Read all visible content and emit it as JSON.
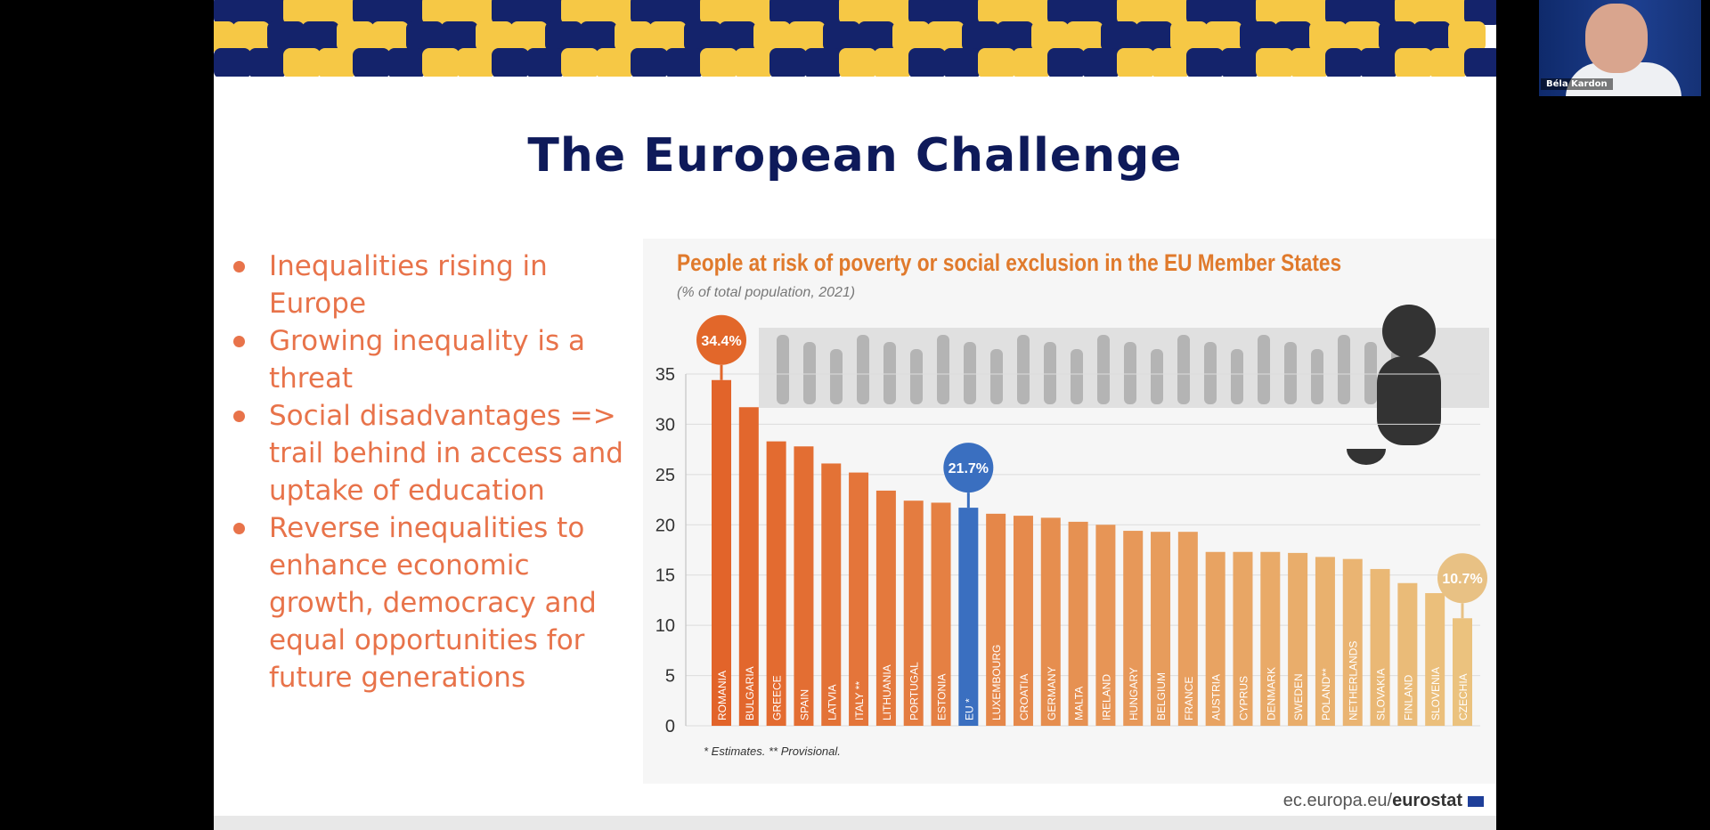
{
  "slide": {
    "title": "The European Challenge",
    "bullets": [
      "Inequalities rising in Europe",
      "Growing inequality is a threat",
      "Social disadvantages => trail behind in access and uptake of education",
      "Reverse inequalities to enhance economic growth, democracy and equal opportunities for future generations"
    ],
    "source_prefix": "ec.europa.eu/",
    "source_bold": "eurostat",
    "banner_colors": [
      "#14236b",
      "#f07a45",
      "#f6c845",
      "#ef8a55"
    ]
  },
  "webcam": {
    "participant_name": "Béla Kardon"
  },
  "chart_data": {
    "type": "bar",
    "title": "People at risk of poverty or social exclusion in the EU Member States",
    "subtitle": "(% of total population, 2021)",
    "footnote": "* Estimates. ** Provisional.",
    "xlabel": "",
    "ylabel": "",
    "ylim": [
      0,
      35
    ],
    "yticks": [
      "0",
      "5",
      "10",
      "15",
      "20",
      "25",
      "30",
      "35"
    ],
    "grid": true,
    "categories": [
      "ROMANIA",
      "BULGARIA",
      "GREECE",
      "SPAIN",
      "LATVIA",
      "ITALY **",
      "LITHUANIA",
      "PORTUGAL",
      "ESTONIA",
      "EU *",
      "LUXEMBOURG",
      "CROATIA",
      "GERMANY",
      "MALTA",
      "IRELAND",
      "HUNGARY",
      "BELGIUM",
      "FRANCE",
      "AUSTRIA",
      "CYPRUS",
      "DENMARK",
      "SWEDEN",
      "POLAND**",
      "NETHERLANDS",
      "SLOVAKIA",
      "FINLAND",
      "SLOVENIA",
      "CZECHIA"
    ],
    "values": [
      34.4,
      31.7,
      28.3,
      27.8,
      26.1,
      25.2,
      23.4,
      22.4,
      22.2,
      21.7,
      21.1,
      20.9,
      20.7,
      20.3,
      20.0,
      19.4,
      19.3,
      19.3,
      17.3,
      17.3,
      17.3,
      17.2,
      16.8,
      16.6,
      15.6,
      14.2,
      13.2,
      10.7
    ],
    "callouts": [
      {
        "index": 0,
        "label": "34.4%",
        "color": "#e2672a"
      },
      {
        "index": 9,
        "label": "21.7%",
        "color": "#3a6fc0"
      },
      {
        "index": 27,
        "label": "10.7%",
        "color": "#e8c184"
      }
    ],
    "highlight_color": "#3a6fc0",
    "color_start": "#e2642a",
    "color_end": "#ebc27e"
  }
}
